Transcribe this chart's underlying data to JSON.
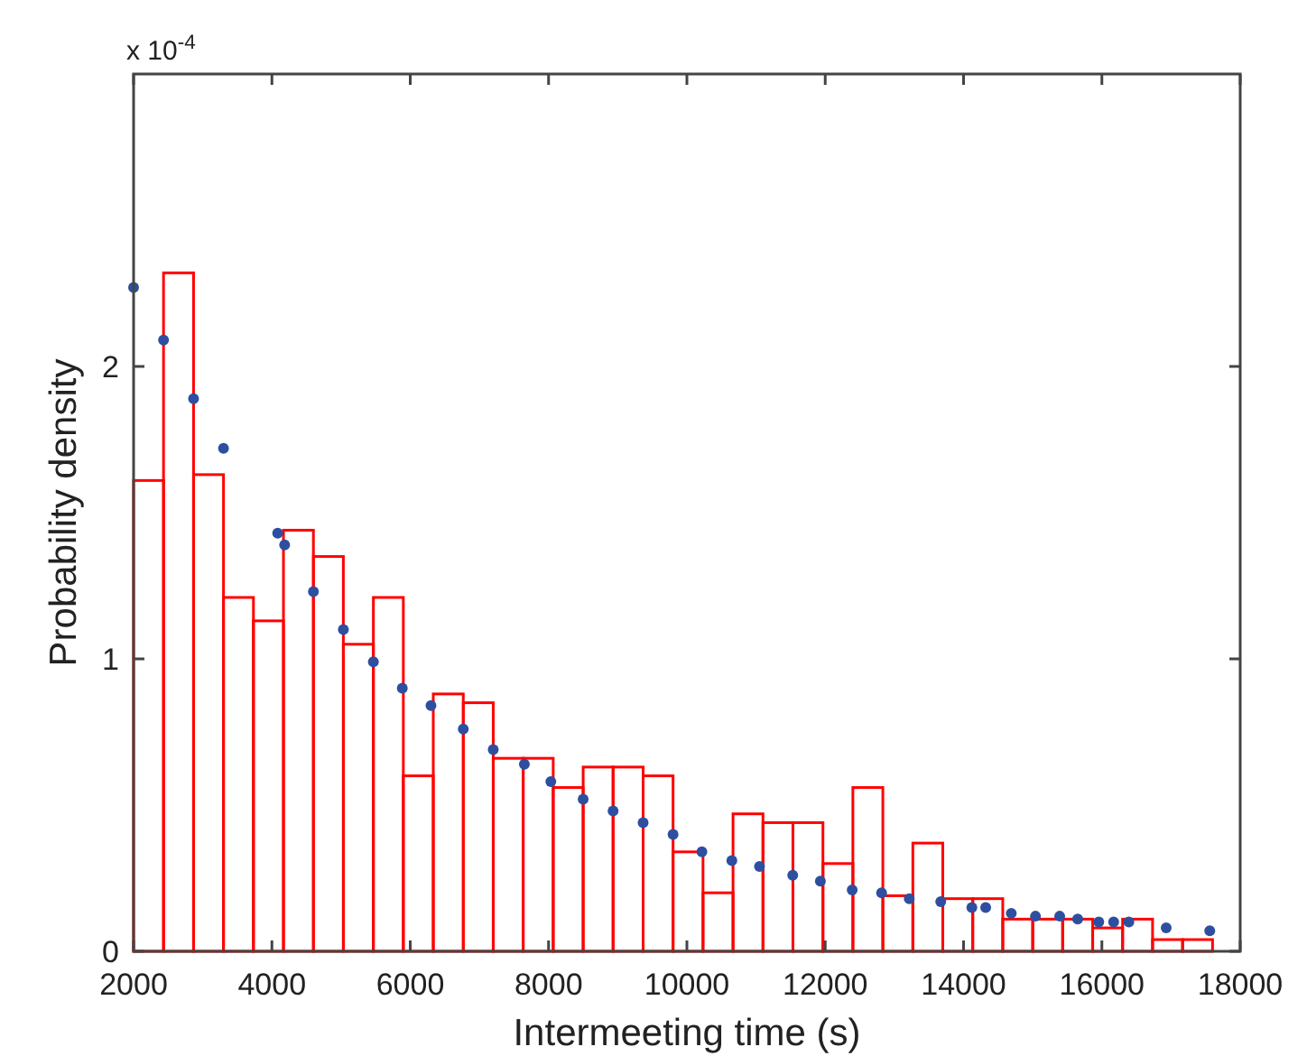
{
  "chart_data": {
    "type": "histogram",
    "xlabel": "Intermeeting time (s)",
    "ylabel": "Probability density",
    "annotations": [
      "x 10$^{-4}$"
    ],
    "xlim": [
      2000,
      18000
    ],
    "xticks": [
      2000,
      4000,
      6000,
      8000,
      10000,
      12000,
      14000,
      16000,
      18000
    ],
    "ylim": [
      0,
      3
    ],
    "yticks": [
      0,
      1,
      2
    ],
    "grid": false,
    "series": [
      {
        "color": "#ff0000",
        "bins": [
          2000,
          2433,
          2867,
          3300,
          3733,
          4167,
          4600,
          5033,
          5467,
          5900,
          6333,
          6767,
          7200,
          7633,
          8067,
          8500,
          8933,
          9367,
          9800,
          10233,
          10667,
          11100,
          11533,
          11967,
          12400,
          12833,
          13267,
          13700,
          14133,
          14567,
          15000,
          15433,
          15867,
          16300,
          16733,
          17167,
          17600
        ],
        "values": [
          1.61,
          2.32,
          1.63,
          1.21,
          1.13,
          1.44,
          1.35,
          1.05,
          1.21,
          0.6,
          0.88,
          0.85,
          0.66,
          0.66,
          0.56,
          0.63,
          0.63,
          0.6,
          0.34,
          0.2,
          0.47,
          0.44,
          0.44,
          0.3,
          0.56,
          0.19,
          0.37,
          0.18,
          0.18,
          0.11,
          0.11,
          0.11,
          0.08,
          0.11,
          0.04,
          0.04
        ]
      },
      {
        "type": "scatter",
        "color": "#2e4fa0",
        "marker": "circle",
        "x": [
          2000,
          2433,
          2867,
          3300,
          4083,
          4184,
          4600,
          5033,
          5467,
          5885,
          6300,
          6767,
          7200,
          7650,
          8033,
          8500,
          8933,
          9367,
          9800,
          10217,
          10650,
          11050,
          11530,
          11930,
          12390,
          12815,
          13215,
          13670,
          14120,
          14320,
          14690,
          15040,
          15390,
          15650,
          15955,
          16170,
          16390,
          16930,
          17560
        ],
        "values": [
          2.27,
          2.09,
          1.89,
          1.72,
          1.43,
          1.39,
          1.23,
          1.1,
          0.99,
          0.9,
          0.84,
          0.76,
          0.69,
          0.64,
          0.58,
          0.52,
          0.48,
          0.44,
          0.4,
          0.34,
          0.31,
          0.29,
          0.26,
          0.24,
          0.21,
          0.2,
          0.18,
          0.17,
          0.15,
          0.15,
          0.13,
          0.12,
          0.12,
          0.11,
          0.1,
          0.1,
          0.1,
          0.08,
          0.07
        ]
      }
    ]
  }
}
